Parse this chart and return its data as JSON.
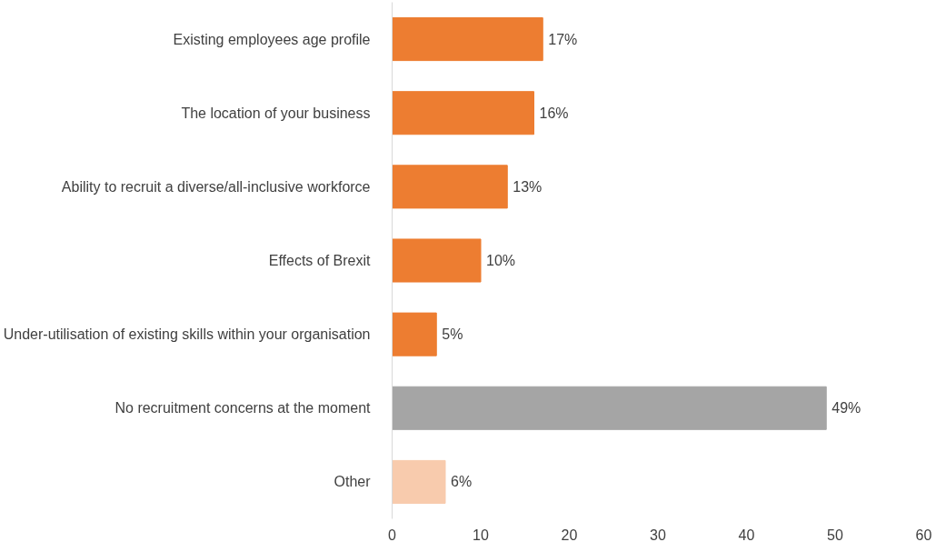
{
  "chart_data": {
    "type": "bar",
    "orientation": "horizontal",
    "categories": [
      "Existing employees age profile",
      "The location of your business",
      "Ability to recruit a diverse/all-inclusive workforce",
      "Effects of Brexit",
      "Under-utilisation of existing skills within your organisation",
      "No recruitment concerns at the moment",
      "Other"
    ],
    "values": [
      17,
      16,
      13,
      10,
      5,
      49,
      6
    ],
    "colors": [
      "#ed7d31",
      "#ed7d31",
      "#ed7d31",
      "#ed7d31",
      "#ed7d31",
      "#a5a5a5",
      "#f8cbad"
    ],
    "value_labels": [
      "17%",
      "16%",
      "13%",
      "10%",
      "5%",
      "49%",
      "6%"
    ],
    "xlim": [
      0,
      60
    ],
    "xticks": [
      0,
      10,
      20,
      30,
      40,
      50,
      60
    ],
    "grid": false
  }
}
